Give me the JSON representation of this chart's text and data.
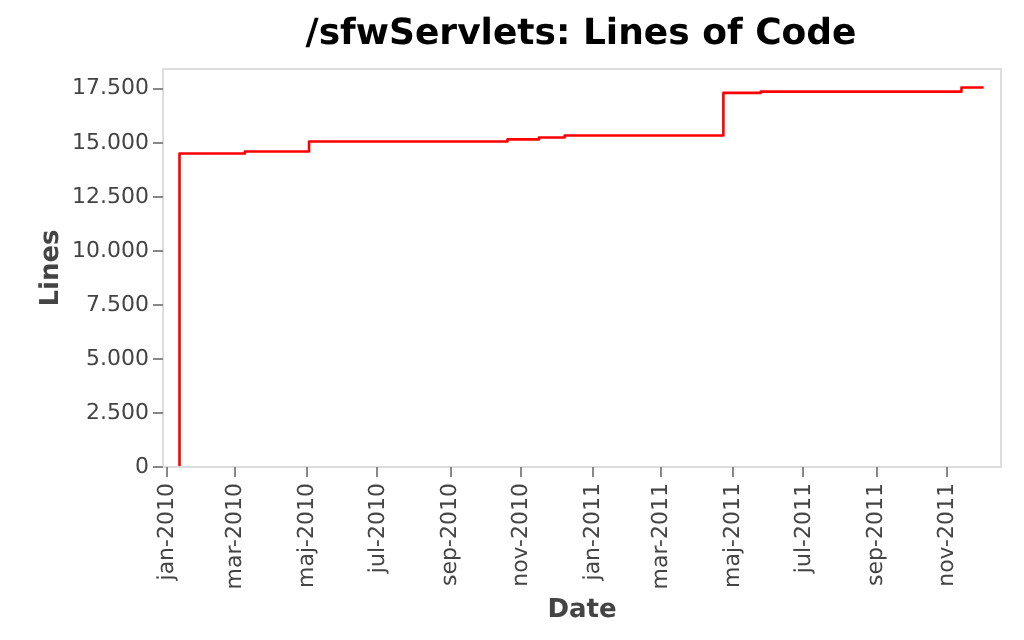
{
  "chart_data": {
    "type": "step",
    "title": "/sfwServlets: Lines of Code",
    "xlabel": "Date",
    "ylabel": "Lines",
    "x": [
      "2010-01-13",
      "2010-01-13",
      "2010-03-10",
      "2010-05-04",
      "2010-10-21",
      "2010-11-17",
      "2010-12-09",
      "2011-04-24",
      "2011-05-26",
      "2011-11-14",
      "2011-12-03"
    ],
    "series": [
      {
        "color": "#ff0000",
        "values": [
          0,
          14450,
          14540,
          15000,
          15100,
          15190,
          15280,
          17250,
          17310,
          17500,
          17500
        ]
      }
    ],
    "xlim": [
      "2009-12-29",
      "2011-12-17"
    ],
    "xticks": [
      {
        "value": "2010-01-01",
        "label": "jan-2010"
      },
      {
        "value": "2010-03-01",
        "label": "mar-2010"
      },
      {
        "value": "2010-05-01",
        "label": "maj-2010"
      },
      {
        "value": "2010-07-01",
        "label": "jul-2010"
      },
      {
        "value": "2010-09-01",
        "label": "sep-2010"
      },
      {
        "value": "2010-11-01",
        "label": "nov-2010"
      },
      {
        "value": "2011-01-01",
        "label": "jan-2011"
      },
      {
        "value": "2011-03-01",
        "label": "mar-2011"
      },
      {
        "value": "2011-05-01",
        "label": "maj-2011"
      },
      {
        "value": "2011-07-01",
        "label": "jul-2011"
      },
      {
        "value": "2011-09-01",
        "label": "sep-2011"
      },
      {
        "value": "2011-11-01",
        "label": "nov-2011"
      }
    ],
    "ylim": [
      0,
      18400
    ],
    "yticks": [
      0,
      {
        "value": 2500,
        "label": "2.500"
      },
      {
        "value": 5000,
        "label": "5.000"
      },
      {
        "value": 7500,
        "label": "7.500"
      },
      {
        "value": 10000,
        "label": "10.000"
      },
      {
        "value": 12500,
        "label": "12.500"
      },
      {
        "value": 15000,
        "label": "15.000"
      },
      {
        "value": 17500,
        "label": "17.500"
      }
    ],
    "grid": false
  }
}
